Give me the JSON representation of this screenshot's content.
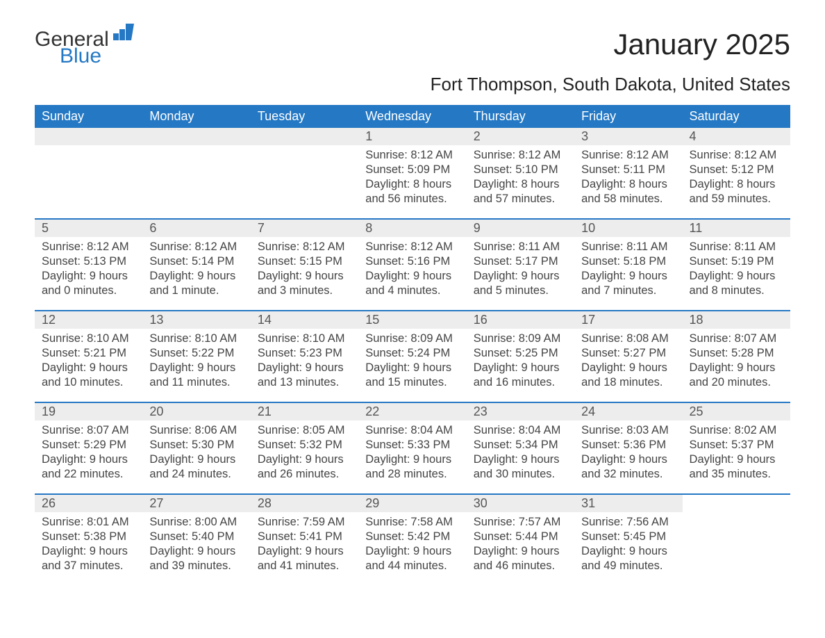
{
  "logo": {
    "general": "General",
    "blue": "Blue",
    "brand_color": "#2478c4"
  },
  "title": "January 2025",
  "location": "Fort Thompson, South Dakota, United States",
  "styling": {
    "header_bg": "#2478c4",
    "header_text_color": "#ffffff",
    "daynum_bg": "#ededed",
    "week_border_color": "#2478c4",
    "body_text_color": "#444444",
    "page_bg": "#ffffff",
    "title_fontsize": 42,
    "location_fontsize": 26,
    "header_fontsize": 18,
    "body_fontsize": 16.5
  },
  "weekdays": [
    "Sunday",
    "Monday",
    "Tuesday",
    "Wednesday",
    "Thursday",
    "Friday",
    "Saturday"
  ],
  "weeks": [
    [
      {
        "blank": true
      },
      {
        "blank": true
      },
      {
        "blank": true
      },
      {
        "n": "1",
        "sunrise": "Sunrise: 8:12 AM",
        "sunset": "Sunset: 5:09 PM",
        "d1": "Daylight: 8 hours",
        "d2": "and 56 minutes."
      },
      {
        "n": "2",
        "sunrise": "Sunrise: 8:12 AM",
        "sunset": "Sunset: 5:10 PM",
        "d1": "Daylight: 8 hours",
        "d2": "and 57 minutes."
      },
      {
        "n": "3",
        "sunrise": "Sunrise: 8:12 AM",
        "sunset": "Sunset: 5:11 PM",
        "d1": "Daylight: 8 hours",
        "d2": "and 58 minutes."
      },
      {
        "n": "4",
        "sunrise": "Sunrise: 8:12 AM",
        "sunset": "Sunset: 5:12 PM",
        "d1": "Daylight: 8 hours",
        "d2": "and 59 minutes."
      }
    ],
    [
      {
        "n": "5",
        "sunrise": "Sunrise: 8:12 AM",
        "sunset": "Sunset: 5:13 PM",
        "d1": "Daylight: 9 hours",
        "d2": "and 0 minutes."
      },
      {
        "n": "6",
        "sunrise": "Sunrise: 8:12 AM",
        "sunset": "Sunset: 5:14 PM",
        "d1": "Daylight: 9 hours",
        "d2": "and 1 minute."
      },
      {
        "n": "7",
        "sunrise": "Sunrise: 8:12 AM",
        "sunset": "Sunset: 5:15 PM",
        "d1": "Daylight: 9 hours",
        "d2": "and 3 minutes."
      },
      {
        "n": "8",
        "sunrise": "Sunrise: 8:12 AM",
        "sunset": "Sunset: 5:16 PM",
        "d1": "Daylight: 9 hours",
        "d2": "and 4 minutes."
      },
      {
        "n": "9",
        "sunrise": "Sunrise: 8:11 AM",
        "sunset": "Sunset: 5:17 PM",
        "d1": "Daylight: 9 hours",
        "d2": "and 5 minutes."
      },
      {
        "n": "10",
        "sunrise": "Sunrise: 8:11 AM",
        "sunset": "Sunset: 5:18 PM",
        "d1": "Daylight: 9 hours",
        "d2": "and 7 minutes."
      },
      {
        "n": "11",
        "sunrise": "Sunrise: 8:11 AM",
        "sunset": "Sunset: 5:19 PM",
        "d1": "Daylight: 9 hours",
        "d2": "and 8 minutes."
      }
    ],
    [
      {
        "n": "12",
        "sunrise": "Sunrise: 8:10 AM",
        "sunset": "Sunset: 5:21 PM",
        "d1": "Daylight: 9 hours",
        "d2": "and 10 minutes."
      },
      {
        "n": "13",
        "sunrise": "Sunrise: 8:10 AM",
        "sunset": "Sunset: 5:22 PM",
        "d1": "Daylight: 9 hours",
        "d2": "and 11 minutes."
      },
      {
        "n": "14",
        "sunrise": "Sunrise: 8:10 AM",
        "sunset": "Sunset: 5:23 PM",
        "d1": "Daylight: 9 hours",
        "d2": "and 13 minutes."
      },
      {
        "n": "15",
        "sunrise": "Sunrise: 8:09 AM",
        "sunset": "Sunset: 5:24 PM",
        "d1": "Daylight: 9 hours",
        "d2": "and 15 minutes."
      },
      {
        "n": "16",
        "sunrise": "Sunrise: 8:09 AM",
        "sunset": "Sunset: 5:25 PM",
        "d1": "Daylight: 9 hours",
        "d2": "and 16 minutes."
      },
      {
        "n": "17",
        "sunrise": "Sunrise: 8:08 AM",
        "sunset": "Sunset: 5:27 PM",
        "d1": "Daylight: 9 hours",
        "d2": "and 18 minutes."
      },
      {
        "n": "18",
        "sunrise": "Sunrise: 8:07 AM",
        "sunset": "Sunset: 5:28 PM",
        "d1": "Daylight: 9 hours",
        "d2": "and 20 minutes."
      }
    ],
    [
      {
        "n": "19",
        "sunrise": "Sunrise: 8:07 AM",
        "sunset": "Sunset: 5:29 PM",
        "d1": "Daylight: 9 hours",
        "d2": "and 22 minutes."
      },
      {
        "n": "20",
        "sunrise": "Sunrise: 8:06 AM",
        "sunset": "Sunset: 5:30 PM",
        "d1": "Daylight: 9 hours",
        "d2": "and 24 minutes."
      },
      {
        "n": "21",
        "sunrise": "Sunrise: 8:05 AM",
        "sunset": "Sunset: 5:32 PM",
        "d1": "Daylight: 9 hours",
        "d2": "and 26 minutes."
      },
      {
        "n": "22",
        "sunrise": "Sunrise: 8:04 AM",
        "sunset": "Sunset: 5:33 PM",
        "d1": "Daylight: 9 hours",
        "d2": "and 28 minutes."
      },
      {
        "n": "23",
        "sunrise": "Sunrise: 8:04 AM",
        "sunset": "Sunset: 5:34 PM",
        "d1": "Daylight: 9 hours",
        "d2": "and 30 minutes."
      },
      {
        "n": "24",
        "sunrise": "Sunrise: 8:03 AM",
        "sunset": "Sunset: 5:36 PM",
        "d1": "Daylight: 9 hours",
        "d2": "and 32 minutes."
      },
      {
        "n": "25",
        "sunrise": "Sunrise: 8:02 AM",
        "sunset": "Sunset: 5:37 PM",
        "d1": "Daylight: 9 hours",
        "d2": "and 35 minutes."
      }
    ],
    [
      {
        "n": "26",
        "sunrise": "Sunrise: 8:01 AM",
        "sunset": "Sunset: 5:38 PM",
        "d1": "Daylight: 9 hours",
        "d2": "and 37 minutes."
      },
      {
        "n": "27",
        "sunrise": "Sunrise: 8:00 AM",
        "sunset": "Sunset: 5:40 PM",
        "d1": "Daylight: 9 hours",
        "d2": "and 39 minutes."
      },
      {
        "n": "28",
        "sunrise": "Sunrise: 7:59 AM",
        "sunset": "Sunset: 5:41 PM",
        "d1": "Daylight: 9 hours",
        "d2": "and 41 minutes."
      },
      {
        "n": "29",
        "sunrise": "Sunrise: 7:58 AM",
        "sunset": "Sunset: 5:42 PM",
        "d1": "Daylight: 9 hours",
        "d2": "and 44 minutes."
      },
      {
        "n": "30",
        "sunrise": "Sunrise: 7:57 AM",
        "sunset": "Sunset: 5:44 PM",
        "d1": "Daylight: 9 hours",
        "d2": "and 46 minutes."
      },
      {
        "n": "31",
        "sunrise": "Sunrise: 7:56 AM",
        "sunset": "Sunset: 5:45 PM",
        "d1": "Daylight: 9 hours",
        "d2": "and 49 minutes."
      },
      {
        "blank": true,
        "trailing": true
      }
    ]
  ]
}
